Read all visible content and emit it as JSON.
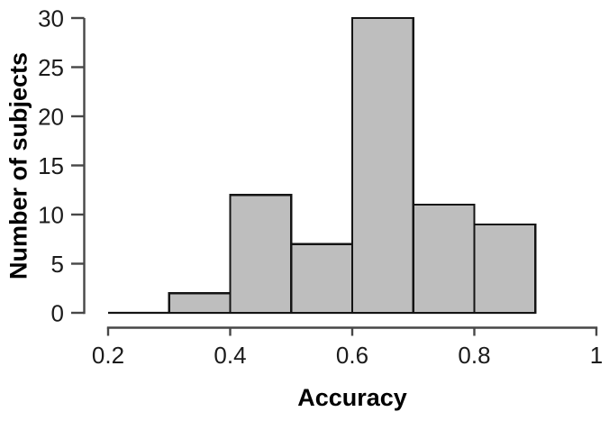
{
  "figure": {
    "background": "#ffffff",
    "bar_fill": "#bebebe",
    "bar_stroke": "#141414",
    "axis_color": "#474747",
    "text_color": "#1b1b1b"
  },
  "chart_data": {
    "type": "bar",
    "subtype": "histogram",
    "title": "",
    "xlabel": "Accuracy",
    "ylabel": "Number of subjects",
    "bin_edges": [
      0.2,
      0.3,
      0.4,
      0.5,
      0.6,
      0.7,
      0.8,
      0.9
    ],
    "counts": [
      0,
      2,
      12,
      7,
      30,
      11,
      9
    ],
    "xlim": [
      0.2,
      1.0
    ],
    "ylim": [
      0,
      30
    ],
    "x_ticks": [
      0.2,
      0.4,
      0.6,
      0.8,
      1.0
    ],
    "x_tick_labels": [
      "0.2",
      "0.4",
      "0.6",
      "0.8",
      "1"
    ],
    "y_ticks": [
      0,
      5,
      10,
      15,
      20,
      25,
      30
    ],
    "y_tick_labels": [
      "0",
      "5",
      "10",
      "15",
      "20",
      "25",
      "30"
    ],
    "grid": false,
    "legend_position": "none"
  }
}
